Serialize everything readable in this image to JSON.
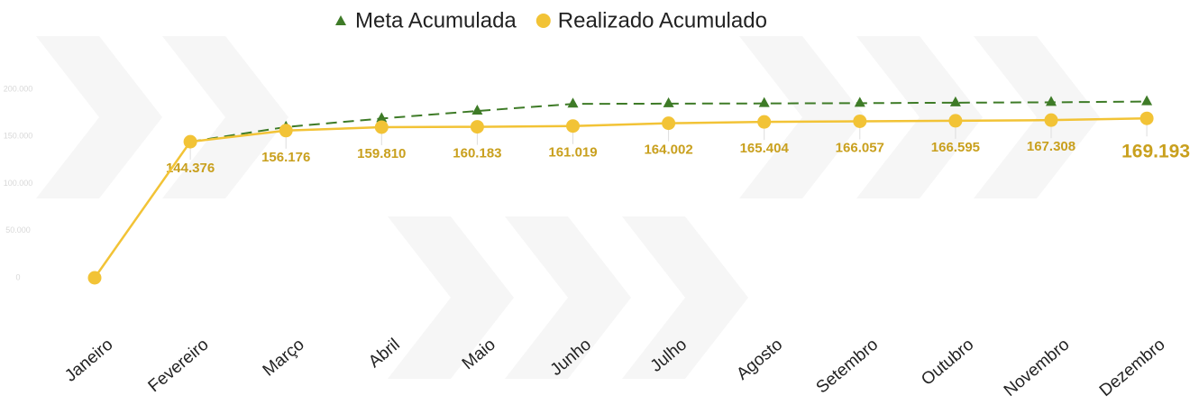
{
  "chart_data": {
    "type": "line",
    "categories": [
      "Janeiro",
      "Fevereiro",
      "Março",
      "Abril",
      "Maio",
      "Junho",
      "Julho",
      "Agosto",
      "Setembro",
      "Outubro",
      "Novembro",
      "Dezembro"
    ],
    "series": [
      {
        "name": "Meta Acumulada",
        "color": "#3e7b27",
        "marker": "triangle",
        "dashed": true,
        "values": [
          null,
          144376,
          160000,
          169000,
          177000,
          184500,
          184800,
          185000,
          185300,
          185800,
          186200,
          187000
        ]
      },
      {
        "name": "Realizado Acumulado",
        "color": "#f2c336",
        "marker": "circle",
        "dashed": false,
        "values": [
          0,
          144376,
          156176,
          159810,
          160183,
          161019,
          164002,
          165404,
          166057,
          166595,
          167308,
          169193
        ],
        "value_labels": [
          null,
          "144.376",
          "156.176",
          "159.810",
          "160.183",
          "161.019",
          "164.002",
          "165.404",
          "166.057",
          "166.595",
          "167.308",
          "169.193"
        ]
      }
    ],
    "ylim": [
      0,
      200000
    ],
    "yticks": [
      0,
      {
        "value": 50000,
        "label": "50.000"
      },
      {
        "value": 100000,
        "label": "100.000"
      },
      {
        "value": 150000,
        "label": "150.000"
      },
      {
        "value": 200000,
        "label": "200.000"
      }
    ],
    "legend": "top"
  }
}
